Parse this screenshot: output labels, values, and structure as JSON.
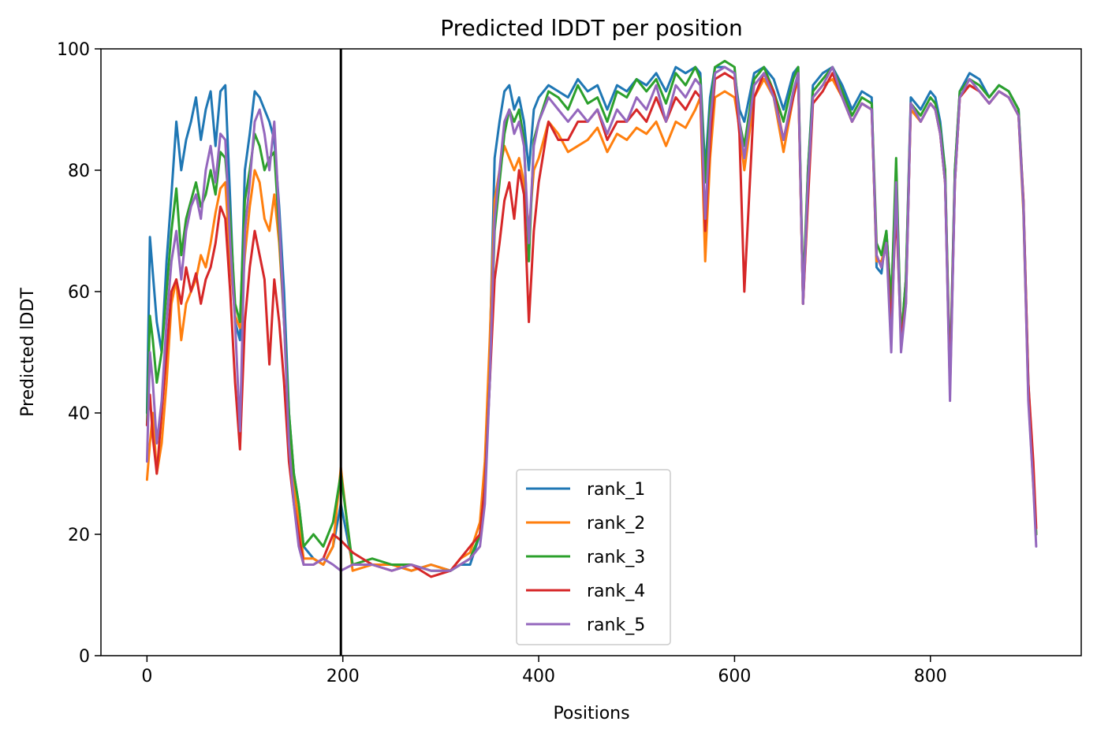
{
  "chart_data": {
    "type": "line",
    "title": "Predicted lDDT per position",
    "xlabel": "Positions",
    "ylabel": "Predicted lDDT",
    "xlim": [
      -47,
      954
    ],
    "ylim": [
      0,
      100
    ],
    "xticks": [
      0,
      200,
      400,
      600,
      800
    ],
    "yticks": [
      0,
      20,
      40,
      60,
      80,
      100
    ],
    "vline": 198,
    "grid": false,
    "legend_position": "lower-center",
    "series": [
      {
        "name": "rank_1",
        "color": "#1f77b4",
        "x": [
          0,
          3,
          6,
          10,
          15,
          20,
          25,
          30,
          35,
          40,
          45,
          50,
          55,
          60,
          65,
          70,
          75,
          80,
          85,
          90,
          95,
          100,
          105,
          110,
          115,
          120,
          125,
          130,
          135,
          140,
          145,
          150,
          155,
          160,
          170,
          180,
          190,
          198,
          210,
          230,
          250,
          270,
          290,
          310,
          320,
          330,
          340,
          345,
          350,
          355,
          360,
          365,
          370,
          375,
          380,
          385,
          390,
          395,
          400,
          410,
          420,
          430,
          440,
          450,
          460,
          470,
          480,
          490,
          500,
          510,
          520,
          530,
          540,
          550,
          560,
          565,
          570,
          575,
          580,
          590,
          600,
          605,
          610,
          620,
          630,
          640,
          650,
          660,
          665,
          670,
          675,
          680,
          690,
          700,
          710,
          720,
          730,
          740,
          745,
          750,
          755,
          760,
          765,
          770,
          775,
          780,
          790,
          800,
          805,
          810,
          815,
          820,
          825,
          830,
          840,
          850,
          860,
          870,
          880,
          890,
          895,
          900,
          905,
          908
        ],
        "values": [
          40,
          69,
          63,
          55,
          50,
          65,
          76,
          88,
          80,
          85,
          88,
          92,
          85,
          90,
          93,
          84,
          93,
          94,
          75,
          55,
          52,
          80,
          86,
          93,
          92,
          90,
          88,
          85,
          74,
          60,
          40,
          30,
          25,
          18,
          16,
          15,
          18,
          25,
          15,
          15,
          15,
          14,
          15,
          14,
          15,
          15,
          20,
          30,
          50,
          82,
          88,
          93,
          94,
          90,
          92,
          88,
          80,
          90,
          92,
          94,
          93,
          92,
          95,
          93,
          94,
          90,
          94,
          93,
          95,
          94,
          96,
          93,
          97,
          96,
          97,
          96,
          80,
          92,
          97,
          97,
          96,
          90,
          88,
          96,
          97,
          95,
          90,
          96,
          97,
          58,
          80,
          94,
          96,
          97,
          94,
          90,
          93,
          92,
          64,
          63,
          70,
          58,
          80,
          52,
          62,
          92,
          90,
          93,
          92,
          88,
          80,
          46,
          80,
          93,
          96,
          95,
          92,
          94,
          93,
          90,
          75,
          45,
          30,
          20
        ]
      },
      {
        "name": "rank_2",
        "color": "#ff7f0e",
        "x": [
          0,
          3,
          6,
          10,
          15,
          20,
          25,
          30,
          35,
          40,
          45,
          50,
          55,
          60,
          65,
          70,
          75,
          80,
          85,
          90,
          95,
          100,
          105,
          110,
          115,
          120,
          125,
          130,
          135,
          140,
          145,
          150,
          155,
          160,
          170,
          180,
          190,
          198,
          210,
          230,
          250,
          270,
          290,
          310,
          320,
          330,
          340,
          345,
          350,
          355,
          360,
          365,
          370,
          375,
          380,
          385,
          390,
          395,
          400,
          410,
          420,
          430,
          440,
          450,
          460,
          470,
          480,
          490,
          500,
          510,
          520,
          530,
          540,
          550,
          560,
          565,
          570,
          575,
          580,
          590,
          600,
          605,
          610,
          620,
          630,
          640,
          650,
          660,
          665,
          670,
          675,
          680,
          690,
          700,
          710,
          720,
          730,
          740,
          745,
          750,
          755,
          760,
          765,
          770,
          775,
          780,
          790,
          800,
          805,
          810,
          815,
          820,
          825,
          830,
          840,
          850,
          860,
          870,
          880,
          890,
          895,
          900,
          905,
          908
        ],
        "values": [
          29,
          35,
          40,
          30,
          35,
          45,
          58,
          62,
          52,
          58,
          60,
          62,
          66,
          64,
          68,
          73,
          77,
          78,
          65,
          56,
          54,
          66,
          74,
          80,
          78,
          72,
          70,
          76,
          68,
          55,
          38,
          28,
          22,
          16,
          16,
          15,
          18,
          31,
          14,
          15,
          15,
          14,
          15,
          14,
          16,
          17,
          22,
          32,
          52,
          75,
          80,
          84,
          82,
          80,
          82,
          78,
          70,
          80,
          82,
          88,
          86,
          83,
          84,
          85,
          87,
          83,
          86,
          85,
          87,
          86,
          88,
          84,
          88,
          87,
          90,
          92,
          65,
          82,
          92,
          93,
          92,
          87,
          80,
          92,
          95,
          92,
          83,
          92,
          95,
          58,
          76,
          92,
          94,
          95,
          92,
          88,
          91,
          90,
          65,
          65,
          68,
          57,
          75,
          53,
          60,
          90,
          88,
          91,
          90,
          86,
          78,
          44,
          78,
          92,
          94,
          93,
          91,
          93,
          92,
          89,
          73,
          43,
          28,
          20
        ]
      },
      {
        "name": "rank_3",
        "color": "#2ca02c",
        "x": [
          0,
          3,
          6,
          10,
          15,
          20,
          25,
          30,
          35,
          40,
          45,
          50,
          55,
          60,
          65,
          70,
          75,
          80,
          85,
          90,
          95,
          100,
          105,
          110,
          115,
          120,
          125,
          130,
          135,
          140,
          145,
          150,
          155,
          160,
          170,
          180,
          190,
          198,
          210,
          230,
          250,
          270,
          290,
          310,
          320,
          330,
          340,
          345,
          350,
          355,
          360,
          365,
          370,
          375,
          380,
          385,
          390,
          395,
          400,
          410,
          420,
          430,
          440,
          450,
          460,
          470,
          480,
          490,
          500,
          510,
          520,
          530,
          540,
          550,
          560,
          565,
          570,
          575,
          580,
          590,
          600,
          605,
          610,
          620,
          630,
          640,
          650,
          660,
          665,
          670,
          675,
          680,
          690,
          700,
          710,
          720,
          730,
          740,
          745,
          750,
          755,
          760,
          765,
          770,
          775,
          780,
          790,
          800,
          805,
          810,
          815,
          820,
          825,
          830,
          840,
          850,
          860,
          870,
          880,
          890,
          895,
          900,
          905,
          908
        ],
        "values": [
          38,
          56,
          52,
          45,
          50,
          60,
          70,
          77,
          66,
          72,
          75,
          78,
          74,
          76,
          80,
          76,
          83,
          82,
          72,
          58,
          55,
          75,
          80,
          86,
          84,
          80,
          82,
          83,
          70,
          55,
          40,
          30,
          25,
          18,
          20,
          18,
          22,
          30,
          15,
          16,
          15,
          15,
          14,
          14,
          15,
          16,
          20,
          28,
          45,
          70,
          78,
          86,
          90,
          88,
          90,
          85,
          65,
          85,
          88,
          93,
          92,
          90,
          94,
          91,
          92,
          88,
          93,
          92,
          95,
          93,
          95,
          91,
          96,
          94,
          97,
          95,
          78,
          90,
          97,
          98,
          97,
          88,
          84,
          95,
          97,
          93,
          88,
          95,
          97,
          60,
          80,
          93,
          95,
          97,
          93,
          89,
          92,
          91,
          68,
          66,
          70,
          58,
          82,
          52,
          62,
          91,
          89,
          92,
          91,
          87,
          80,
          45,
          80,
          93,
          95,
          94,
          92,
          94,
          93,
          90,
          74,
          44,
          29,
          20
        ]
      },
      {
        "name": "rank_4",
        "color": "#d62728",
        "x": [
          0,
          3,
          6,
          10,
          15,
          20,
          25,
          30,
          35,
          40,
          45,
          50,
          55,
          60,
          65,
          70,
          75,
          80,
          85,
          90,
          95,
          100,
          105,
          110,
          115,
          120,
          125,
          130,
          135,
          140,
          145,
          150,
          155,
          160,
          170,
          180,
          190,
          198,
          210,
          230,
          250,
          270,
          290,
          310,
          320,
          330,
          340,
          345,
          350,
          355,
          360,
          365,
          370,
          375,
          380,
          385,
          390,
          395,
          400,
          410,
          420,
          430,
          440,
          450,
          460,
          470,
          480,
          490,
          500,
          510,
          520,
          530,
          540,
          550,
          560,
          565,
          570,
          575,
          580,
          590,
          600,
          605,
          610,
          620,
          630,
          640,
          650,
          660,
          665,
          670,
          675,
          680,
          690,
          700,
          710,
          720,
          730,
          740,
          745,
          750,
          755,
          760,
          765,
          770,
          775,
          780,
          790,
          800,
          805,
          810,
          815,
          820,
          825,
          830,
          840,
          850,
          860,
          870,
          880,
          890,
          895,
          900,
          905,
          908
        ],
        "values": [
          38,
          43,
          36,
          30,
          40,
          50,
          60,
          62,
          58,
          64,
          60,
          63,
          58,
          62,
          64,
          68,
          74,
          72,
          60,
          45,
          34,
          55,
          64,
          70,
          66,
          62,
          48,
          62,
          55,
          45,
          32,
          25,
          20,
          15,
          15,
          16,
          20,
          19,
          17,
          15,
          14,
          15,
          13,
          14,
          16,
          18,
          20,
          28,
          45,
          62,
          68,
          75,
          78,
          72,
          80,
          76,
          55,
          70,
          78,
          88,
          85,
          85,
          88,
          88,
          90,
          85,
          88,
          88,
          90,
          88,
          92,
          88,
          92,
          90,
          93,
          92,
          70,
          85,
          95,
          96,
          95,
          86,
          60,
          92,
          96,
          93,
          85,
          92,
          96,
          58,
          75,
          91,
          93,
          96,
          92,
          88,
          91,
          90,
          66,
          64,
          68,
          54,
          74,
          52,
          58,
          91,
          88,
          91,
          90,
          86,
          78,
          44,
          78,
          92,
          94,
          93,
          91,
          93,
          92,
          89,
          75,
          45,
          32,
          21
        ]
      },
      {
        "name": "rank_5",
        "color": "#9467bd",
        "x": [
          0,
          3,
          6,
          10,
          15,
          20,
          25,
          30,
          35,
          40,
          45,
          50,
          55,
          60,
          65,
          70,
          75,
          80,
          85,
          90,
          95,
          100,
          105,
          110,
          115,
          120,
          125,
          130,
          135,
          140,
          145,
          150,
          155,
          160,
          170,
          180,
          190,
          198,
          210,
          230,
          250,
          270,
          290,
          310,
          320,
          330,
          340,
          345,
          350,
          355,
          360,
          365,
          370,
          375,
          380,
          385,
          390,
          395,
          400,
          410,
          420,
          430,
          440,
          450,
          460,
          470,
          480,
          490,
          500,
          510,
          520,
          530,
          540,
          550,
          560,
          565,
          570,
          575,
          580,
          590,
          600,
          605,
          610,
          620,
          630,
          640,
          650,
          660,
          665,
          670,
          675,
          680,
          690,
          700,
          710,
          720,
          730,
          740,
          745,
          750,
          755,
          760,
          765,
          770,
          775,
          780,
          790,
          800,
          805,
          810,
          815,
          820,
          825,
          830,
          840,
          850,
          860,
          870,
          880,
          890,
          895,
          900,
          905,
          908
        ],
        "values": [
          32,
          50,
          45,
          35,
          42,
          55,
          65,
          70,
          62,
          70,
          74,
          76,
          72,
          80,
          84,
          78,
          86,
          85,
          68,
          55,
          37,
          70,
          78,
          88,
          90,
          86,
          80,
          88,
          72,
          55,
          35,
          25,
          18,
          15,
          15,
          16,
          15,
          14,
          15,
          15,
          14,
          15,
          14,
          14,
          15,
          16,
          18,
          25,
          45,
          72,
          80,
          88,
          90,
          86,
          88,
          84,
          68,
          84,
          88,
          92,
          90,
          88,
          90,
          88,
          90,
          86,
          90,
          88,
          92,
          90,
          94,
          88,
          94,
          92,
          95,
          94,
          72,
          88,
          96,
          97,
          96,
          88,
          82,
          94,
          96,
          92,
          85,
          93,
          96,
          58,
          78,
          92,
          94,
          97,
          92,
          88,
          91,
          90,
          66,
          64,
          68,
          50,
          78,
          50,
          58,
          91,
          88,
          91,
          90,
          86,
          78,
          42,
          78,
          92,
          95,
          93,
          91,
          93,
          92,
          89,
          74,
          42,
          28,
          18
        ]
      }
    ]
  }
}
